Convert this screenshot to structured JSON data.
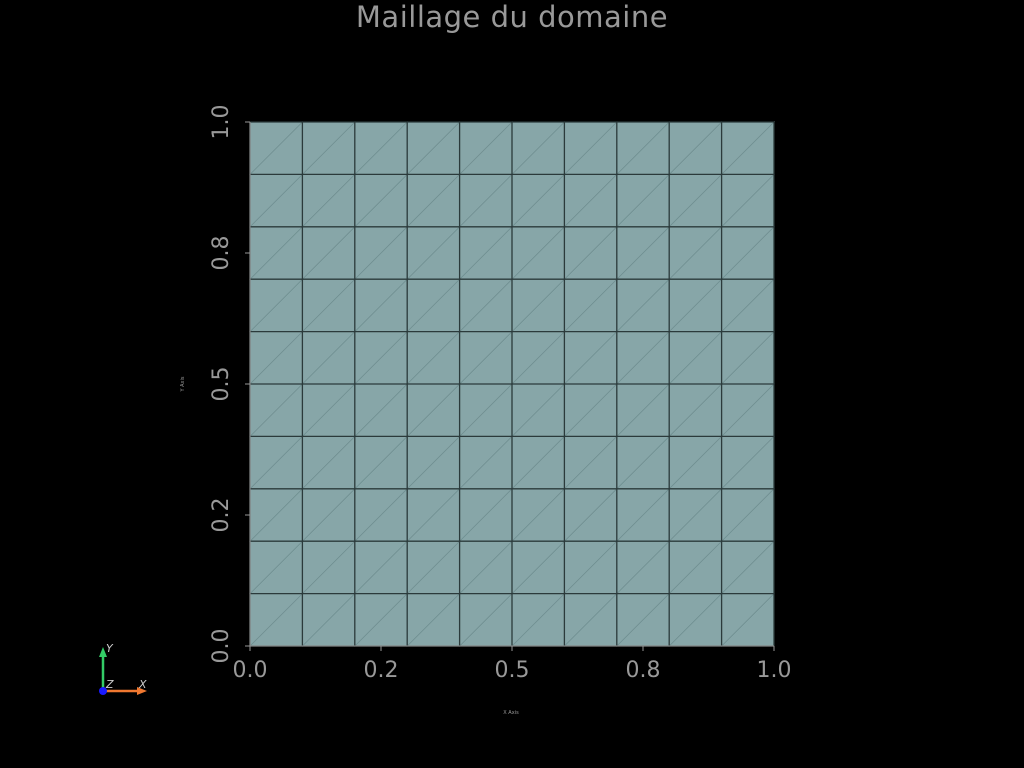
{
  "title": "Maillage du domaine",
  "colors": {
    "background": "#000000",
    "mesh_fill": "#87a6a8",
    "mesh_edge": "#2b3a3b",
    "text": "#999999",
    "axis_x": "#f07830",
    "axis_y": "#33cc66",
    "axis_z": "#1a1aff"
  },
  "mesh": {
    "nx": 10,
    "ny": 10,
    "cell_type": "triangle",
    "x_range": [
      0,
      1
    ],
    "y_range": [
      0,
      1
    ]
  },
  "axes": {
    "xlabel": "X Axis",
    "ylabel": "Y Axis",
    "x_ticks": [
      {
        "value": 0.0,
        "label": "0.0"
      },
      {
        "value": 0.25,
        "label": "0.2"
      },
      {
        "value": 0.5,
        "label": "0.5"
      },
      {
        "value": 0.75,
        "label": "0.8"
      },
      {
        "value": 1.0,
        "label": "1.0"
      }
    ],
    "y_ticks": [
      {
        "value": 0.0,
        "label": "0.0"
      },
      {
        "value": 0.25,
        "label": "0.2"
      },
      {
        "value": 0.5,
        "label": "0.5"
      },
      {
        "value": 0.75,
        "label": "0.8"
      },
      {
        "value": 1.0,
        "label": "1.0"
      }
    ]
  },
  "orientation_widget": {
    "x_label": "X",
    "y_label": "Y",
    "z_label": "Z"
  }
}
